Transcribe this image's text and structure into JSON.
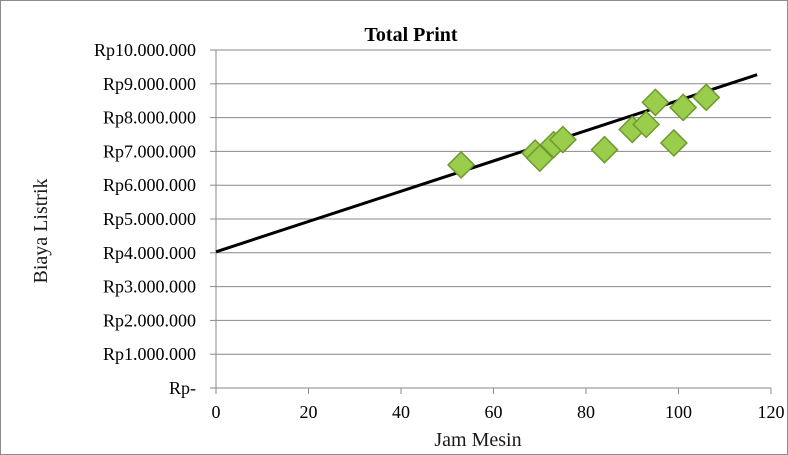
{
  "chart_data": {
    "type": "scatter",
    "title": "Total Print",
    "xlabel": "Jam Mesin",
    "ylabel": "Biaya Listrik",
    "xlim": [
      0,
      120
    ],
    "ylim": [
      0,
      10000000
    ],
    "x_ticks": [
      0,
      20,
      40,
      60,
      80,
      100,
      120
    ],
    "y_ticks": [
      0,
      1000000,
      2000000,
      3000000,
      4000000,
      5000000,
      6000000,
      7000000,
      8000000,
      9000000,
      10000000
    ],
    "y_tick_labels": [
      "Rp-",
      "Rp1.000.000",
      "Rp2.000.000",
      "Rp3.000.000",
      "Rp4.000.000",
      "Rp5.000.000",
      "Rp6.000.000",
      "Rp7.000.000",
      "Rp8.000.000",
      "Rp9.000.000",
      "Rp10.000.000"
    ],
    "grid": "horizontal",
    "points": [
      {
        "x": 53,
        "y": 6600000
      },
      {
        "x": 69,
        "y": 6950000
      },
      {
        "x": 70,
        "y": 6800000
      },
      {
        "x": 73,
        "y": 7200000
      },
      {
        "x": 75,
        "y": 7350000
      },
      {
        "x": 84,
        "y": 7050000
      },
      {
        "x": 90,
        "y": 7650000
      },
      {
        "x": 93,
        "y": 7800000
      },
      {
        "x": 95,
        "y": 8450000
      },
      {
        "x": 99,
        "y": 7250000
      },
      {
        "x": 101,
        "y": 8300000
      },
      {
        "x": 106,
        "y": 8600000
      }
    ],
    "trendline": {
      "x_start": 0,
      "y_start": 4030000,
      "x_end": 117,
      "y_end": 9270000
    },
    "colors": {
      "marker_fill": "#9acd4c",
      "marker_stroke": "#6f9a2e",
      "trendline": "#000000",
      "grid": "#8a8a8a"
    }
  }
}
